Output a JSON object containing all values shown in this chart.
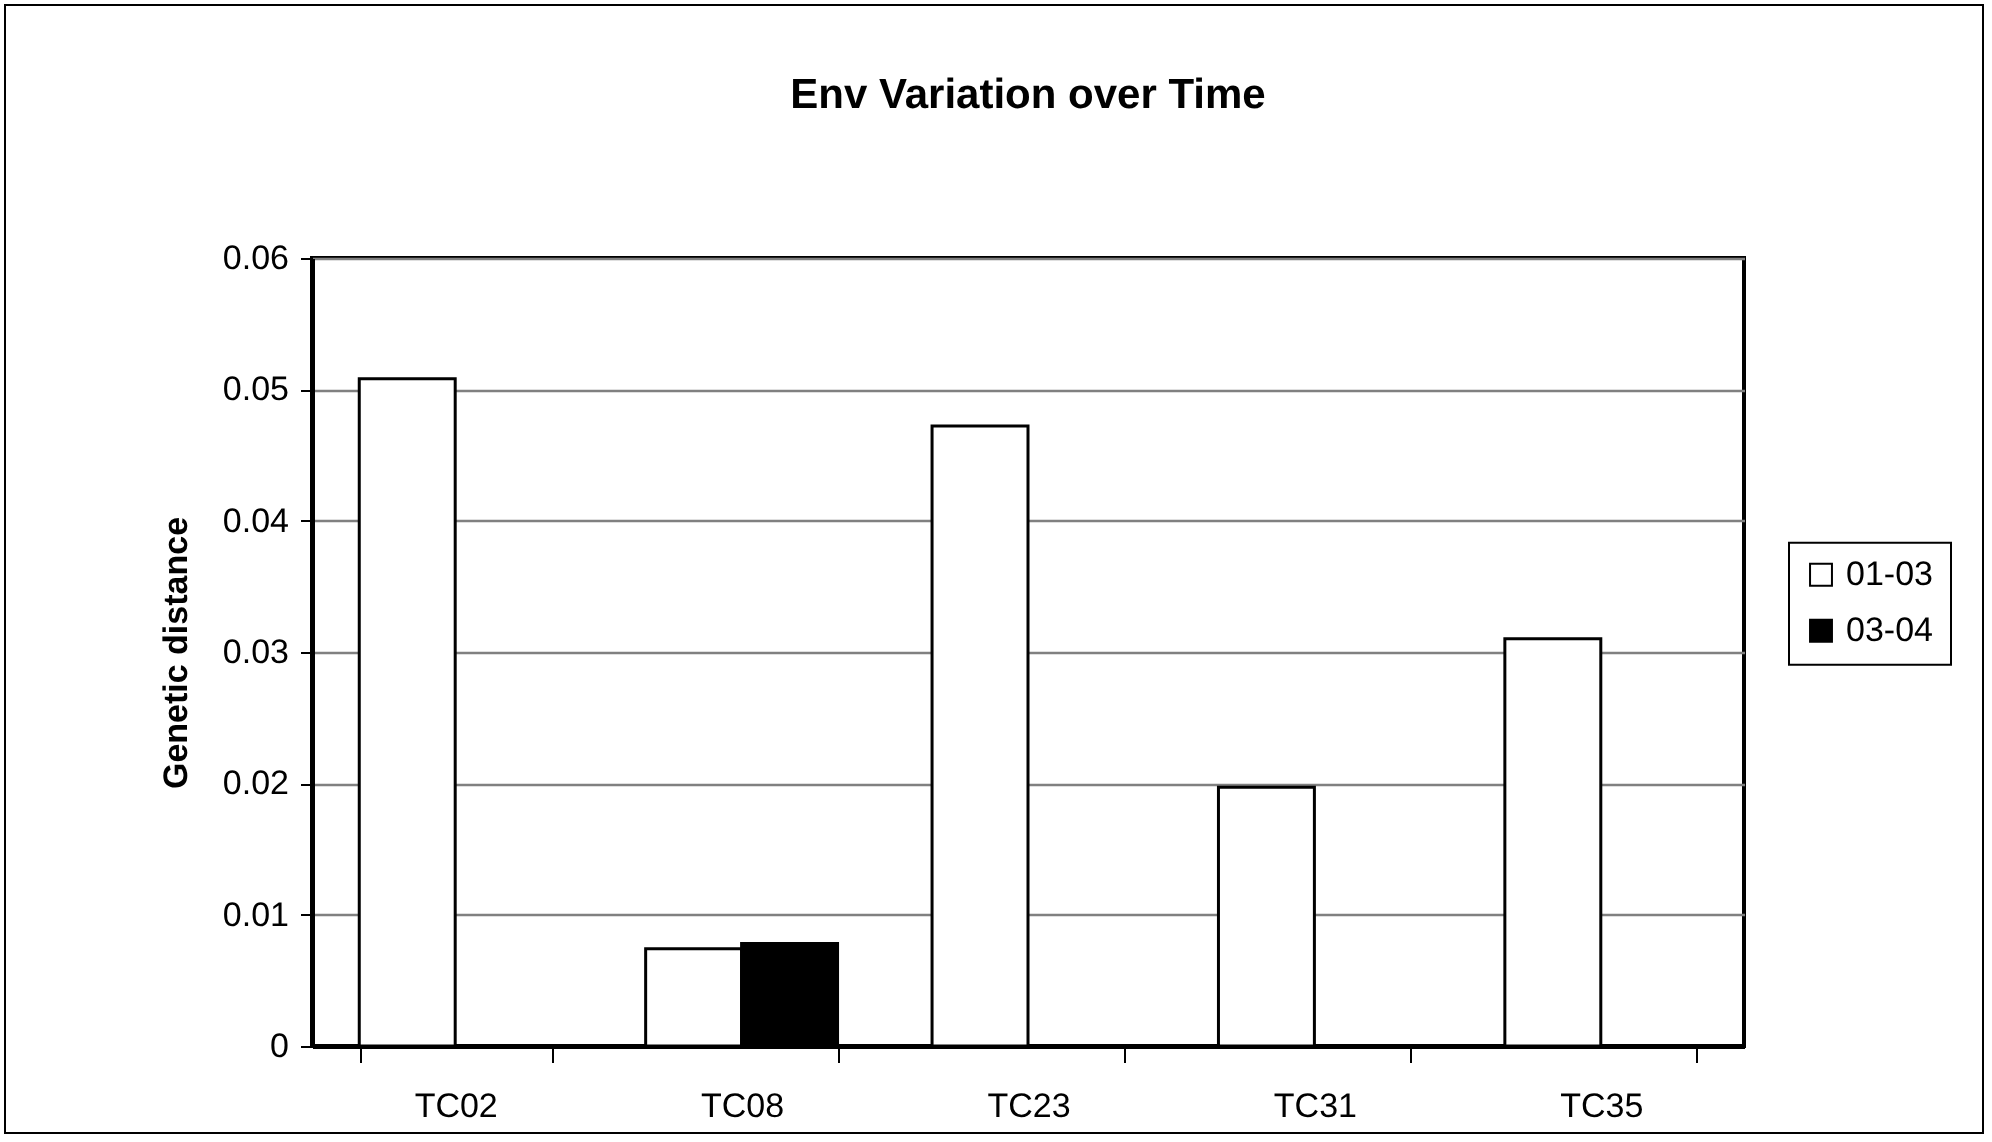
{
  "chart_data": {
    "type": "bar",
    "title": "Env Variation over Time",
    "ylabel": "Genetic distance",
    "categories": [
      "TC02",
      "TC08",
      "TC23",
      "TC31",
      "TC35"
    ],
    "series": [
      {
        "name": "01-03",
        "color": "#ffffff",
        "values": [
          0.0508,
          0.0074,
          0.0472,
          0.0197,
          0.031
        ]
      },
      {
        "name": "03-04",
        "color": "#000000",
        "values": [
          null,
          0.0078,
          null,
          null,
          null
        ]
      }
    ],
    "ylim": [
      0,
      0.06
    ],
    "yticks": [
      0,
      0.01,
      0.02,
      0.03,
      0.04,
      0.05,
      0.06
    ],
    "grid": "y",
    "legend": "right"
  }
}
